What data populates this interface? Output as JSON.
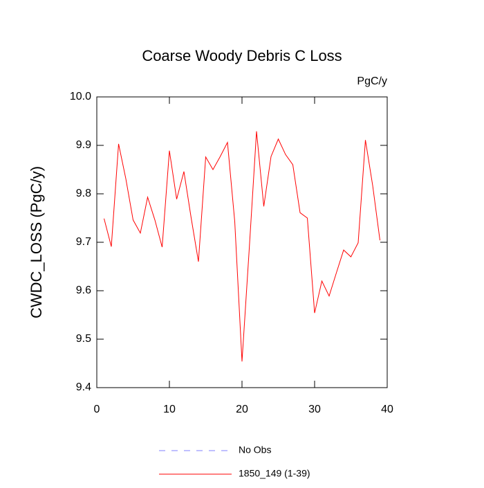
{
  "chart_data": {
    "type": "line",
    "title": "Coarse Woody Debris C Loss",
    "units": "PgC/y",
    "ylabel": "CWDC_LOSS  (PgC/y)",
    "x": [
      1,
      2,
      3,
      4,
      5,
      6,
      7,
      8,
      9,
      10,
      11,
      12,
      13,
      14,
      15,
      16,
      17,
      18,
      19,
      20,
      21,
      22,
      23,
      24,
      25,
      26,
      27,
      28,
      29,
      30,
      31,
      32,
      33,
      34,
      35,
      36,
      37,
      38,
      39
    ],
    "series": [
      {
        "name": "1850_149 (1-39)",
        "color": "#ff0000",
        "values": [
          9.749,
          9.691,
          9.903,
          9.831,
          9.746,
          9.719,
          9.793,
          9.746,
          9.69,
          9.889,
          9.789,
          9.846,
          9.75,
          9.66,
          9.876,
          9.85,
          9.877,
          9.906,
          9.743,
          9.454,
          9.687,
          9.929,
          9.774,
          9.877,
          9.913,
          9.881,
          9.86,
          9.761,
          9.75,
          9.554,
          9.62,
          9.589,
          9.637,
          9.684,
          9.67,
          9.699,
          9.911,
          9.817,
          9.704
        ]
      }
    ],
    "reference": {
      "name": "No Obs",
      "color": "#8080ff",
      "dashed": true
    },
    "xlim": [
      0,
      40
    ],
    "xticks": [
      0,
      10,
      20,
      30,
      40
    ],
    "ylim": [
      9.4,
      10.0
    ],
    "yticks": [
      9.4,
      9.5,
      9.6,
      9.7,
      9.8,
      9.9,
      {
        "value": 10,
        "label": "10.0"
      }
    ],
    "grid": false
  }
}
